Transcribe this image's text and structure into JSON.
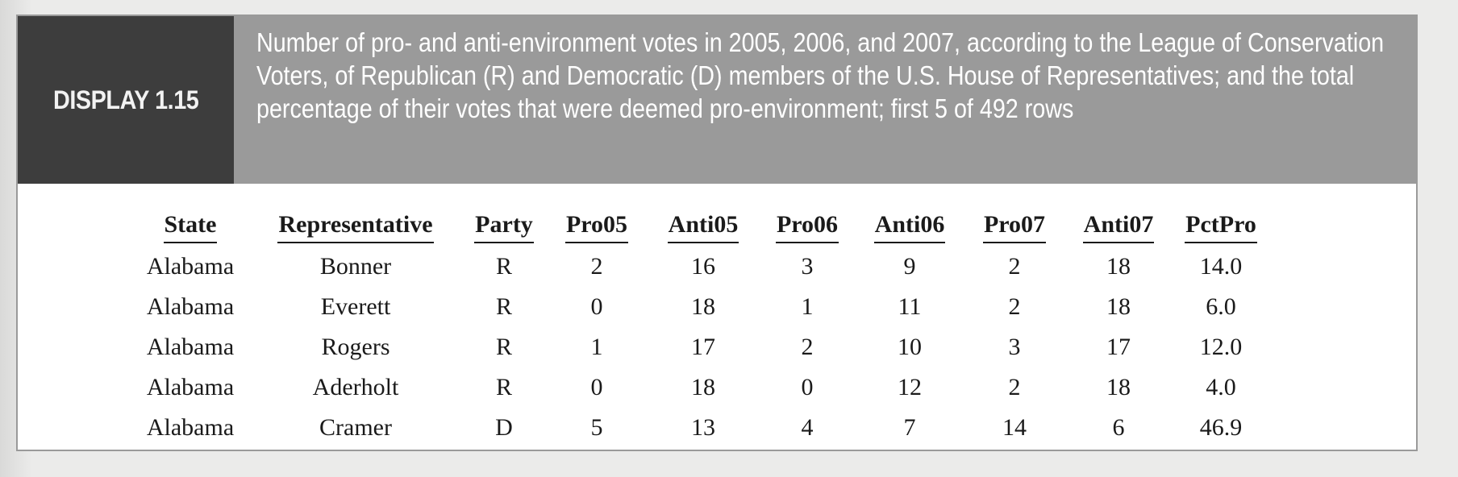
{
  "display": {
    "label": "DISPLAY 1.15",
    "caption": "Number of pro- and anti-environment votes in 2005, 2006, and 2007, according to the League of Conservation Voters, of Republican (R) and Democratic (D) members of the U.S. House of Representatives; and the total percentage of their votes that were deemed pro-environment; first 5 of 492 rows"
  },
  "table": {
    "headers": [
      "State",
      "Representative",
      "Party",
      "Pro05",
      "Anti05",
      "Pro06",
      "Anti06",
      "Pro07",
      "Anti07",
      "PctPro"
    ],
    "rows": [
      [
        "Alabama",
        "Bonner",
        "R",
        "2",
        "16",
        "3",
        "9",
        "2",
        "18",
        "14.0"
      ],
      [
        "Alabama",
        "Everett",
        "R",
        "0",
        "18",
        "1",
        "11",
        "2",
        "18",
        "6.0"
      ],
      [
        "Alabama",
        "Rogers",
        "R",
        "1",
        "17",
        "2",
        "10",
        "3",
        "17",
        "12.0"
      ],
      [
        "Alabama",
        "Aderholt",
        "R",
        "0",
        "18",
        "0",
        "12",
        "2",
        "18",
        "4.0"
      ],
      [
        "Alabama",
        "Cramer",
        "D",
        "5",
        "13",
        "4",
        "7",
        "14",
        "6",
        "46.9"
      ]
    ]
  }
}
